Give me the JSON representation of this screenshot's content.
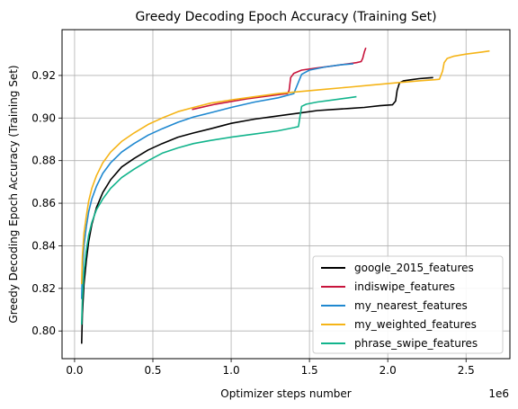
{
  "chart_data": {
    "type": "line",
    "title": "Greedy Decoding Epoch Accuracy (Training Set)",
    "xlabel": "Optimizer steps number",
    "ylabel": "Greedy Decoding Epoch Accuracy (Training Set)",
    "x_offset_label": "1e6",
    "xlim": [
      -80000,
      2780000
    ],
    "ylim": [
      0.787,
      0.9415
    ],
    "x_ticks": [
      0,
      0.5,
      1.0,
      1.5,
      2.0,
      2.5
    ],
    "x_tick_labels": [
      "0.0",
      "0.5",
      "1.0",
      "1.5",
      "2.0",
      "2.5"
    ],
    "y_ticks": [
      0.8,
      0.82,
      0.84,
      0.86,
      0.88,
      0.9,
      0.92
    ],
    "y_tick_labels": [
      "0.80",
      "0.82",
      "0.84",
      "0.86",
      "0.88",
      "0.90",
      "0.92"
    ],
    "grid": true,
    "legend_position": "lower-right",
    "series": [
      {
        "name": "google_2015_features",
        "color": "#000000",
        "x": [
          45000,
          50000,
          60000,
          75000,
          90000,
          110000,
          140000,
          180000,
          230000,
          300000,
          380000,
          470000,
          560000,
          660000,
          760000,
          870000,
          1000000,
          1150000,
          1300000,
          1450000,
          1550000,
          1650000,
          1750000,
          1850000,
          1950000,
          2030000,
          2050000,
          2060000,
          2075000,
          2100000,
          2150000,
          2200000,
          2250000,
          2290000
        ],
        "y": [
          0.794,
          0.808,
          0.822,
          0.833,
          0.842,
          0.85,
          0.858,
          0.865,
          0.871,
          0.877,
          0.881,
          0.885,
          0.888,
          0.891,
          0.893,
          0.895,
          0.8975,
          0.8995,
          0.901,
          0.9025,
          0.9035,
          0.904,
          0.9045,
          0.905,
          0.9058,
          0.9062,
          0.908,
          0.913,
          0.9165,
          0.9175,
          0.918,
          0.9185,
          0.9188,
          0.919
        ]
      },
      {
        "name": "indiswipe_features",
        "color": "#c8143c",
        "x": [
          750000,
          900000,
          1100000,
          1300000,
          1360000,
          1370000,
          1380000,
          1400000,
          1450000,
          1550000,
          1650000,
          1750000,
          1800000,
          1830000,
          1840000,
          1850000,
          1860000
        ],
        "y": [
          0.904,
          0.9065,
          0.909,
          0.911,
          0.9115,
          0.913,
          0.919,
          0.921,
          0.9225,
          0.9235,
          0.9245,
          0.9255,
          0.926,
          0.9265,
          0.928,
          0.931,
          0.933
        ]
      },
      {
        "name": "my_nearest_features",
        "color": "#1f88d0",
        "x": [
          45000,
          50000,
          60000,
          75000,
          90000,
          110000,
          140000,
          180000,
          230000,
          300000,
          380000,
          470000,
          560000,
          660000,
          760000,
          870000,
          1000000,
          1150000,
          1300000,
          1400000,
          1450000,
          1500000,
          1600000,
          1700000,
          1780000
        ],
        "y": [
          0.815,
          0.828,
          0.84,
          0.849,
          0.856,
          0.862,
          0.868,
          0.874,
          0.879,
          0.884,
          0.888,
          0.892,
          0.895,
          0.898,
          0.9005,
          0.9025,
          0.905,
          0.9075,
          0.9095,
          0.9115,
          0.9205,
          0.9225,
          0.924,
          0.925,
          0.9255
        ]
      },
      {
        "name": "my_weighted_features",
        "color": "#f5b417",
        "x": [
          45000,
          50000,
          60000,
          75000,
          90000,
          110000,
          140000,
          180000,
          230000,
          300000,
          380000,
          470000,
          560000,
          660000,
          760000,
          870000,
          1000000,
          1150000,
          1300000,
          1450000,
          1600000,
          1750000,
          1900000,
          2050000,
          2200000,
          2300000,
          2330000,
          2350000,
          2360000,
          2380000,
          2420000,
          2500000,
          2600000,
          2650000
        ],
        "y": [
          0.822,
          0.835,
          0.846,
          0.854,
          0.861,
          0.867,
          0.873,
          0.879,
          0.884,
          0.889,
          0.893,
          0.897,
          0.9,
          0.903,
          0.905,
          0.907,
          0.9085,
          0.91,
          0.9115,
          0.9125,
          0.9135,
          0.9145,
          0.9155,
          0.9165,
          0.9175,
          0.918,
          0.9182,
          0.922,
          0.926,
          0.928,
          0.929,
          0.93,
          0.931,
          0.9315
        ]
      },
      {
        "name": "phrase_swipe_features",
        "color": "#12b48c",
        "x": [
          45000,
          50000,
          60000,
          75000,
          90000,
          110000,
          140000,
          180000,
          230000,
          300000,
          380000,
          470000,
          560000,
          660000,
          760000,
          870000,
          1000000,
          1150000,
          1300000,
          1400000,
          1430000,
          1440000,
          1450000,
          1480000,
          1550000,
          1650000,
          1750000,
          1800000
        ],
        "y": [
          0.803,
          0.815,
          0.828,
          0.838,
          0.845,
          0.851,
          0.857,
          0.862,
          0.867,
          0.872,
          0.876,
          0.88,
          0.8835,
          0.886,
          0.888,
          0.8895,
          0.891,
          0.8925,
          0.894,
          0.8955,
          0.896,
          0.901,
          0.9055,
          0.9065,
          0.9075,
          0.9085,
          0.9095,
          0.91
        ]
      }
    ]
  }
}
